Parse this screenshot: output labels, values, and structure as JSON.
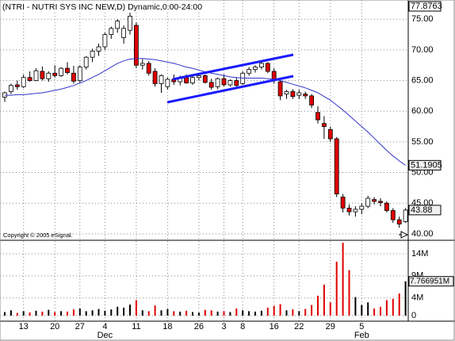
{
  "chart_data": {
    "type": "candlestick",
    "title": "(NTRI - NUTRI SYS INC NEW,D) Dynamic,0:00-24:00",
    "copyright": "Copyright © 2005 eSignal.",
    "categories": [
      null,
      null,
      null,
      "13",
      null,
      null,
      null,
      null,
      "20",
      null,
      null,
      null,
      "27",
      null,
      null,
      null,
      "4",
      null,
      null,
      null,
      null,
      "11",
      null,
      null,
      null,
      null,
      "18",
      null,
      null,
      null,
      null,
      "26",
      null,
      null,
      null,
      "3",
      null,
      null,
      "8",
      null,
      null,
      null,
      null,
      "16",
      null,
      null,
      null,
      "22",
      null,
      null,
      null,
      null,
      "29",
      null,
      null,
      null,
      null,
      "5",
      null,
      null,
      null,
      null,
      null,
      null,
      null
    ],
    "month_row": [
      null,
      null,
      null,
      null,
      null,
      null,
      null,
      null,
      null,
      null,
      null,
      null,
      null,
      null,
      null,
      null,
      "Dec",
      null,
      null,
      null,
      null,
      null,
      null,
      null,
      null,
      null,
      null,
      null,
      null,
      null,
      null,
      null,
      null,
      null,
      null,
      null,
      null,
      null,
      null,
      null,
      null,
      null,
      null,
      null,
      null,
      null,
      null,
      null,
      null,
      null,
      null,
      null,
      null,
      null,
      null,
      null,
      null,
      "Feb",
      null,
      null,
      null,
      null,
      null,
      null,
      null
    ],
    "open": [
      62.3,
      63.2,
      64.3,
      64.0,
      65.5,
      65.0,
      66.5,
      65.3,
      66.2,
      65.8,
      67.0,
      66.2,
      65.0,
      67.2,
      68.8,
      69.8,
      70.5,
      72.5,
      73.5,
      72.0,
      73.2,
      74.0,
      67.5,
      67.8,
      66.5,
      64.5,
      64.0,
      65.2,
      64.8,
      65.5,
      64.6,
      65.5,
      65.8,
      64.7,
      64.0,
      65.3,
      64.3,
      65.0,
      64.5,
      66.2,
      66.8,
      67.2,
      67.8,
      66.5,
      64.8,
      62.8,
      63.2,
      62.6,
      62.8,
      62.5,
      59.8,
      58.0,
      57.0,
      55.5,
      46.0,
      44.2,
      43.6,
      44.0,
      44.5,
      45.6,
      45.3,
      45.0,
      43.8,
      42.3,
      42.0
    ],
    "high": [
      63.2,
      64.5,
      65.0,
      66.0,
      66.5,
      67.0,
      67.3,
      66.5,
      67.5,
      67.2,
      68.0,
      67.4,
      67.5,
      69.0,
      70.2,
      71.0,
      72.8,
      73.8,
      75.0,
      74.0,
      76.2,
      74.5,
      68.5,
      68.2,
      67.0,
      66.0,
      65.5,
      66.0,
      65.8,
      66.0,
      65.8,
      66.2,
      66.0,
      65.3,
      65.5,
      66.0,
      65.2,
      65.5,
      66.5,
      67.2,
      67.5,
      68.2,
      68.0,
      67.0,
      65.0,
      63.5,
      63.6,
      63.5,
      63.2,
      62.8,
      60.8,
      59.2,
      57.5,
      55.8,
      46.5,
      44.8,
      44.5,
      45.0,
      46.2,
      46.0,
      45.8,
      45.3,
      44.2,
      42.8,
      44.2
    ],
    "low": [
      61.5,
      62.8,
      63.5,
      63.8,
      64.8,
      64.9,
      65.0,
      64.8,
      65.5,
      65.6,
      66.0,
      64.5,
      64.5,
      66.8,
      68.0,
      69.0,
      70.0,
      71.8,
      72.8,
      71.0,
      72.5,
      67.0,
      66.8,
      65.8,
      64.0,
      63.0,
      63.5,
      64.3,
      64.2,
      64.5,
      64.3,
      65.0,
      64.5,
      63.5,
      63.6,
      64.0,
      64.0,
      64.0,
      64.3,
      65.8,
      66.3,
      66.8,
      66.2,
      64.5,
      61.8,
      62.0,
      62.0,
      62.0,
      62.0,
      60.5,
      58.0,
      55.5,
      55.0,
      46.0,
      43.5,
      43.0,
      42.8,
      43.2,
      44.2,
      44.8,
      44.5,
      43.5,
      41.8,
      41.0,
      41.8
    ],
    "close": [
      63.0,
      64.2,
      64.0,
      65.5,
      65.0,
      66.6,
      65.3,
      66.2,
      65.8,
      67.0,
      66.3,
      64.9,
      67.2,
      68.8,
      69.8,
      70.5,
      72.5,
      73.5,
      74.7,
      73.5,
      75.5,
      67.5,
      67.8,
      66.2,
      64.5,
      65.8,
      65.2,
      64.8,
      65.5,
      64.6,
      65.5,
      65.8,
      64.7,
      63.9,
      65.3,
      64.3,
      65.0,
      64.2,
      66.2,
      66.8,
      67.2,
      67.8,
      66.5,
      65.0,
      62.5,
      63.2,
      62.4,
      63.0,
      62.5,
      61.0,
      58.6,
      57.5,
      55.5,
      46.5,
      44.2,
      43.6,
      44.0,
      44.5,
      45.8,
      45.3,
      45.1,
      43.8,
      42.3,
      41.6,
      43.88
    ],
    "up_color": "#ffffff",
    "down_color": "#e00000",
    "moving_average": {
      "color": "#3333cc",
      "values": [
        62.6,
        62.6,
        62.7,
        62.7,
        62.8,
        62.9,
        63.0,
        63.2,
        63.4,
        63.6,
        63.9,
        64.2,
        64.6,
        65.0,
        65.5,
        66.0,
        66.6,
        67.2,
        67.8,
        68.2,
        68.5,
        68.6,
        68.6,
        68.5,
        68.4,
        68.2,
        68.0,
        67.8,
        67.5,
        67.2,
        67.0,
        66.7,
        66.4,
        66.2,
        66.0,
        65.8,
        65.6,
        65.5,
        65.4,
        65.4,
        65.4,
        65.4,
        65.3,
        65.2,
        65.0,
        64.7,
        64.4,
        64.1,
        63.8,
        63.4,
        63.0,
        62.4,
        61.8,
        61.0,
        60.2,
        59.3,
        58.4,
        57.5,
        56.6,
        55.6,
        54.6,
        53.6,
        52.7,
        51.9,
        51.1905
      ]
    },
    "ylim": [
      39.08,
      77.8763
    ],
    "yticks": [
      {
        "value": 75,
        "label": "75.00"
      },
      {
        "value": 70,
        "label": "70.00"
      },
      {
        "value": 65,
        "label": "65.00"
      },
      {
        "value": 60,
        "label": "60.00"
      },
      {
        "value": 55,
        "label": "55.00"
      },
      {
        "value": 50,
        "label": "50.00"
      },
      {
        "value": 45,
        "label": "45.00"
      },
      {
        "value": 40,
        "label": "40.00"
      }
    ],
    "price_markers": [
      77.8763,
      51.1905,
      43.88
    ],
    "volume": {
      "values": [
        0.8,
        1.2,
        0.6,
        1.0,
        0.7,
        1.1,
        0.9,
        1.3,
        0.8,
        1.0,
        0.9,
        1.4,
        1.6,
        1.0,
        1.2,
        1.5,
        1.1,
        1.4,
        2.0,
        1.8,
        2.5,
        3.5,
        1.2,
        1.0,
        2.3,
        1.2,
        1.5,
        1.0,
        0.9,
        1.1,
        0.8,
        0.7,
        1.3,
        1.2,
        0.9,
        1.0,
        0.8,
        1.6,
        1.2,
        1.0,
        0.9,
        1.1,
        1.8,
        2.2,
        2.6,
        1.2,
        1.4,
        1.0,
        1.5,
        2.4,
        4.5,
        7.0,
        3.0,
        12.2,
        16.5,
        10.3,
        4.2,
        2.4,
        3.0,
        1.6,
        2.0,
        3.5,
        3.8,
        5.0,
        7.766951
      ],
      "ylim": [
        -1.26,
        16.87
      ],
      "yticks": [
        {
          "value": 14,
          "label": "14M"
        },
        {
          "value": 9,
          "label": "9M"
        },
        {
          "value": 4,
          "label": "4M"
        },
        0
      ],
      "marker": {
        "value": 7.766951,
        "label": "7.766951M"
      }
    },
    "grid": true
  }
}
